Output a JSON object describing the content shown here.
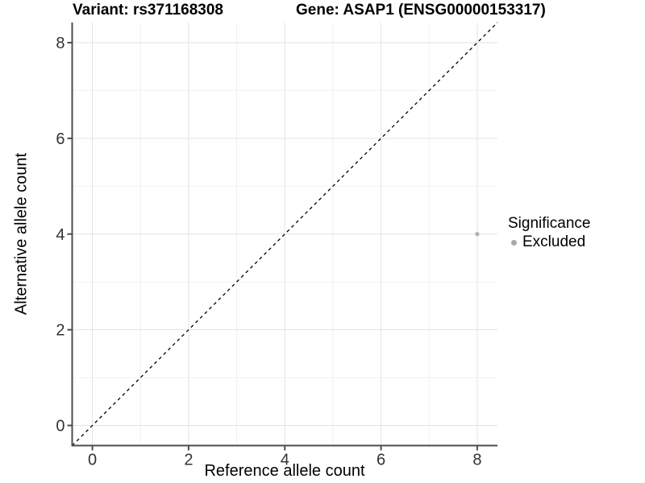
{
  "header": {
    "title_left": "Variant: rs371168308",
    "title_right": "Gene: ASAP1 (ENSG00000153317)"
  },
  "chart_data": {
    "type": "scatter",
    "title_left": "Variant: rs371168308",
    "title_right": "Gene: ASAP1 (ENSG00000153317)",
    "xlabel": "Reference allele count",
    "ylabel": "Alternative allele count",
    "xlim": [
      -0.42,
      8.42
    ],
    "ylim": [
      -0.42,
      8.42
    ],
    "x_major_ticks": [
      0,
      2,
      4,
      6,
      8
    ],
    "y_major_ticks": [
      0,
      2,
      4,
      6,
      8
    ],
    "x_minor_ticks": [
      1,
      3,
      5,
      7
    ],
    "y_minor_ticks": [
      1,
      3,
      5,
      7
    ],
    "grid": {
      "major_color": "#e3e3e3",
      "minor_color": "#f0f0f0",
      "background": "#ffffff"
    },
    "axis_color": "#4d4d4d",
    "tick_label_color": "#333333",
    "identity_line": {
      "style": "dashed",
      "color": "#000000",
      "dash": "4 4"
    },
    "series": [
      {
        "name": "Excluded",
        "color": "#b0b0b0",
        "points": [
          {
            "x": 8,
            "y": 4
          }
        ]
      }
    ],
    "legend": {
      "title": "Significance",
      "position": "right",
      "entries": [
        {
          "label": "Excluded",
          "color": "#a8a8a8"
        }
      ]
    }
  }
}
